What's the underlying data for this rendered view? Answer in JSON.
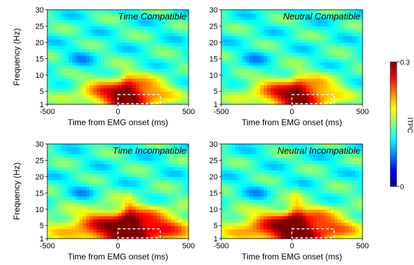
{
  "chart_data": [
    {
      "type": "heatmap",
      "title": "Time Compatible",
      "xlabel": "Time from EMG onset (ms)",
      "ylabel": "Frequency (Hz)",
      "xlim": [
        -500,
        500
      ],
      "ylim": [
        1,
        30
      ],
      "xticks": [
        "-500",
        "0",
        "500"
      ],
      "yticks": [
        "1",
        "5",
        "10",
        "15",
        "20",
        "25",
        "30"
      ],
      "peak": {
        "time_ms": 70,
        "freq_hz": 4,
        "value": 0.28
      },
      "spread": {
        "rise_ms": 230,
        "fall_ms": 200,
        "freq_hz": 3.8
      },
      "ridge": {
        "value": 0.2,
        "top_hz": 12
      },
      "roi": {
        "x_ms": [
          0,
          300
        ],
        "y_hz": [
          1,
          4
        ]
      }
    },
    {
      "type": "heatmap",
      "title": "Neutral Compatible",
      "xlabel": "Time from EMG onset (ms)",
      "ylabel": "Frequency (Hz)",
      "xlim": [
        -500,
        500
      ],
      "ylim": [
        1,
        30
      ],
      "xticks": [
        "-500",
        "0",
        "500"
      ],
      "yticks": [
        "1",
        "5",
        "10",
        "15",
        "20",
        "25",
        "30"
      ],
      "peak": {
        "time_ms": 50,
        "freq_hz": 4,
        "value": 0.28
      },
      "spread": {
        "rise_ms": 240,
        "fall_ms": 190,
        "freq_hz": 3.8
      },
      "ridge": {
        "value": 0.18,
        "top_hz": 11
      },
      "roi": {
        "x_ms": [
          0,
          300
        ],
        "y_hz": [
          1,
          4
        ]
      }
    },
    {
      "type": "heatmap",
      "title": "Time Incompatible",
      "xlabel": "Time from EMG onset (ms)",
      "ylabel": "Frequency (Hz)",
      "xlim": [
        -500,
        500
      ],
      "ylim": [
        1,
        30
      ],
      "xticks": [
        "-500",
        "0",
        "500"
      ],
      "yticks": [
        "1",
        "5",
        "10",
        "15",
        "20",
        "25",
        "30"
      ],
      "peak": {
        "time_ms": 80,
        "freq_hz": 4,
        "value": 0.3
      },
      "spread": {
        "rise_ms": 330,
        "fall_ms": 300,
        "freq_hz": 4.5
      },
      "ridge": {
        "value": 0.22,
        "top_hz": 15
      },
      "roi": {
        "x_ms": [
          0,
          300
        ],
        "y_hz": [
          1,
          4
        ]
      }
    },
    {
      "type": "heatmap",
      "title": "Neutral Incompatible",
      "xlabel": "Time from EMG onset (ms)",
      "ylabel": "Frequency (Hz)",
      "xlim": [
        -500,
        500
      ],
      "ylim": [
        1,
        30
      ],
      "xticks": [
        "-500",
        "0",
        "500"
      ],
      "yticks": [
        "1",
        "5",
        "10",
        "15",
        "20",
        "25",
        "30"
      ],
      "peak": {
        "time_ms": 30,
        "freq_hz": 4,
        "value": 0.3
      },
      "spread": {
        "rise_ms": 300,
        "fall_ms": 280,
        "freq_hz": 4.2
      },
      "ridge": {
        "value": 0.22,
        "top_hz": 17
      },
      "roi": {
        "x_ms": [
          0,
          300
        ],
        "y_hz": [
          1,
          4
        ]
      }
    }
  ],
  "colorbar": {
    "label": "ITPC",
    "min_label": "0",
    "max_label": "0.3",
    "min": 0,
    "max": 0.3,
    "colormap": "jet"
  }
}
